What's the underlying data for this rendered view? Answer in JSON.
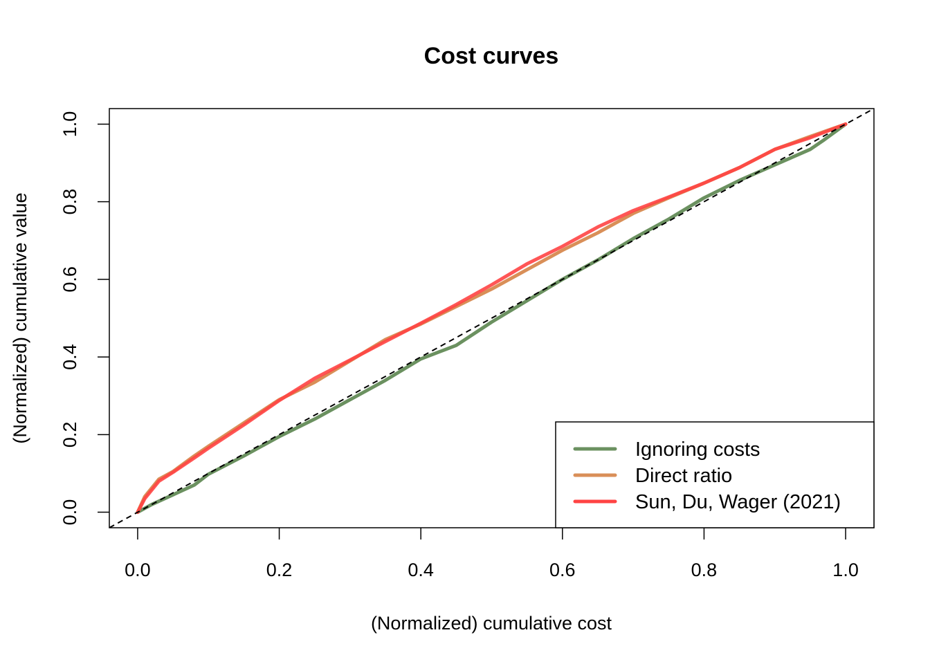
{
  "chart_data": {
    "type": "line",
    "title": "Cost curves",
    "xlabel": "(Normalized) cumulative cost",
    "ylabel": "(Normalized) cumulative value",
    "xlim": [
      -0.04,
      1.04
    ],
    "ylim": [
      -0.04,
      1.04
    ],
    "xticks": [
      "0.0",
      "0.2",
      "0.4",
      "0.6",
      "0.8",
      "1.0"
    ],
    "yticks": [
      "0.0",
      "0.2",
      "0.4",
      "0.6",
      "0.8",
      "1.0"
    ],
    "grid": false,
    "legend_position": "bottom-right",
    "reference_line": {
      "style": "dashed",
      "color": "#000000",
      "from": [
        0,
        0
      ],
      "to": [
        1,
        1
      ]
    },
    "series": [
      {
        "name": "Ignoring costs",
        "color": "#6B9160",
        "x": [
          0,
          0.02,
          0.05,
          0.08,
          0.1,
          0.15,
          0.2,
          0.25,
          0.3,
          0.35,
          0.4,
          0.45,
          0.5,
          0.55,
          0.6,
          0.65,
          0.7,
          0.75,
          0.8,
          0.85,
          0.9,
          0.95,
          0.97,
          1.0
        ],
        "y": [
          0,
          0.02,
          0.045,
          0.07,
          0.098,
          0.145,
          0.195,
          0.24,
          0.29,
          0.34,
          0.395,
          0.43,
          0.49,
          0.545,
          0.6,
          0.65,
          0.705,
          0.755,
          0.81,
          0.855,
          0.895,
          0.935,
          0.96,
          1.0
        ]
      },
      {
        "name": "Direct ratio",
        "color": "#D98F58",
        "x": [
          0,
          0.01,
          0.03,
          0.05,
          0.08,
          0.1,
          0.15,
          0.2,
          0.25,
          0.3,
          0.35,
          0.4,
          0.45,
          0.5,
          0.55,
          0.6,
          0.65,
          0.7,
          0.75,
          0.8,
          0.85,
          0.9,
          0.95,
          1.0
        ],
        "y": [
          0,
          0.04,
          0.085,
          0.105,
          0.145,
          0.17,
          0.23,
          0.29,
          0.335,
          0.39,
          0.445,
          0.485,
          0.53,
          0.575,
          0.625,
          0.675,
          0.72,
          0.77,
          0.81,
          0.848,
          0.888,
          0.935,
          0.968,
          1.0
        ]
      },
      {
        "name": "Sun, Du, Wager (2021)",
        "color": "#FF4444",
        "x": [
          0,
          0.01,
          0.03,
          0.05,
          0.08,
          0.1,
          0.15,
          0.2,
          0.25,
          0.3,
          0.35,
          0.4,
          0.45,
          0.5,
          0.55,
          0.6,
          0.65,
          0.7,
          0.75,
          0.8,
          0.85,
          0.9,
          0.95,
          1.0
        ],
        "y": [
          0,
          0.035,
          0.08,
          0.103,
          0.14,
          0.165,
          0.225,
          0.288,
          0.345,
          0.392,
          0.44,
          0.487,
          0.535,
          0.586,
          0.64,
          0.685,
          0.735,
          0.777,
          0.812,
          0.848,
          0.888,
          0.935,
          0.965,
          1.0
        ]
      }
    ]
  }
}
